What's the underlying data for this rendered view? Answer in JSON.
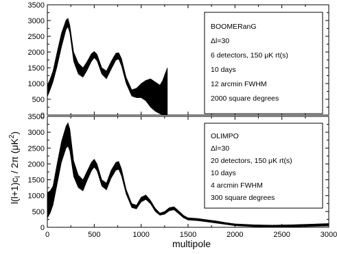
{
  "chart_data": [
    {
      "type": "area",
      "panel": "top",
      "xlim": [
        0,
        3000
      ],
      "ylim": [
        0,
        3500
      ],
      "yticks": [
        0,
        500,
        1000,
        1500,
        2000,
        2500,
        3000,
        3500
      ],
      "xticks": [
        0,
        500,
        1000,
        1500,
        2000,
        2500,
        3000
      ],
      "grid": false,
      "legend_position": "top-right",
      "legend_lines": [
        "BOOMERanG",
        "Δl=30",
        "6 detectors, 150 μK rt(s)",
        "10 days",
        "12 arcmin FWHM",
        "2000 square degrees"
      ],
      "series": [
        {
          "x": [
            2,
            30,
            60,
            100,
            150,
            200,
            220,
            240,
            280,
            330,
            380,
            420,
            470,
            500,
            530,
            580,
            630,
            680,
            730,
            760,
            790,
            840,
            900,
            950,
            1000,
            1050,
            1100,
            1150,
            1200,
            1230,
            1260,
            1280
          ],
          "upper": [
            950,
            1150,
            1400,
            1950,
            2600,
            3020,
            3070,
            2850,
            2000,
            1650,
            1500,
            1680,
            1950,
            2020,
            1930,
            1500,
            1400,
            1700,
            1960,
            1980,
            1800,
            1200,
            800,
            850,
            1000,
            1100,
            1150,
            1050,
            950,
            1100,
            1350,
            1500
          ],
          "lower": [
            600,
            800,
            1050,
            1500,
            2150,
            2720,
            2800,
            2600,
            1700,
            1300,
            1200,
            1400,
            1700,
            1820,
            1720,
            1300,
            1150,
            1450,
            1740,
            1780,
            1560,
            1000,
            600,
            550,
            550,
            450,
            250,
            120,
            40,
            0,
            0,
            0
          ]
        }
      ]
    },
    {
      "type": "area",
      "panel": "bottom",
      "xlim": [
        0,
        3000
      ],
      "ylim": [
        0,
        3500
      ],
      "xlabel": "multipole",
      "ylabel": "l(l+1)c",
      "ylabel_sub": "l",
      "ylabel_tail": " / 2π   (μK",
      "ylabel_sup": "2",
      "ylabel_end": ")",
      "yticks": [
        0,
        500,
        1000,
        1500,
        2000,
        2500,
        3000,
        3500
      ],
      "xticks": [
        0,
        500,
        1000,
        1500,
        2000,
        2500,
        3000
      ],
      "grid": false,
      "legend_position": "top-right",
      "legend_lines": [
        "OLIMPO",
        "Δl=30",
        "20 detectors, 150 μK rt(s)",
        "10 days",
        "4 arcmin FWHM",
        "300 square degrees"
      ],
      "series": [
        {
          "x": [
            2,
            30,
            60,
            100,
            150,
            200,
            220,
            240,
            280,
            330,
            380,
            420,
            470,
            500,
            530,
            580,
            630,
            680,
            730,
            760,
            790,
            840,
            900,
            950,
            1000,
            1050,
            1100,
            1150,
            1200,
            1250,
            1300,
            1350,
            1400,
            1450,
            1500,
            1600,
            1700,
            1800,
            1900,
            2000,
            2200,
            2400,
            2600,
            2800,
            3000
          ],
          "upper": [
            1100,
            1150,
            1300,
            1950,
            2700,
            3200,
            3300,
            3100,
            2100,
            1650,
            1500,
            1750,
            2050,
            2150,
            2000,
            1500,
            1400,
            1800,
            2050,
            2080,
            1850,
            1200,
            750,
            700,
            950,
            1020,
            850,
            600,
            450,
            500,
            620,
            650,
            520,
            380,
            300,
            280,
            240,
            200,
            150,
            110,
            80,
            70,
            80,
            100,
            120
          ],
          "lower": [
            300,
            450,
            700,
            1300,
            2050,
            2500,
            2560,
            2400,
            1600,
            1250,
            1150,
            1450,
            1780,
            1900,
            1780,
            1300,
            1180,
            1550,
            1800,
            1830,
            1620,
            1050,
            620,
            580,
            800,
            880,
            740,
            500,
            380,
            410,
            520,
            550,
            430,
            300,
            230,
            210,
            170,
            130,
            90,
            50,
            20,
            10,
            15,
            25,
            40
          ]
        }
      ]
    }
  ]
}
